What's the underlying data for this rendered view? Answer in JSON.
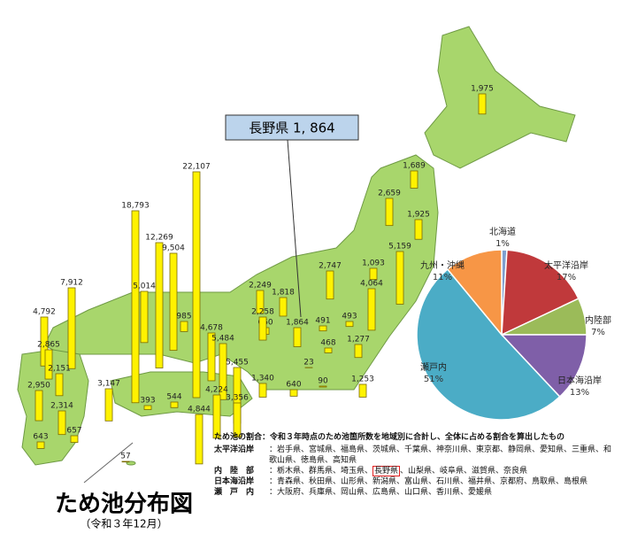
{
  "title": "ため池分布図",
  "subtitle": "（令和３年12月）",
  "callout": "長野県 1, 864",
  "bars": {
    "color": "#fff200",
    "values": [
      1975,
      1689,
      2659,
      1925,
      5159,
      1093,
      4064,
      2747,
      2249,
      1818,
      660,
      2258,
      1864,
      491,
      493,
      468,
      1277,
      23,
      1253,
      90,
      1340,
      640,
      22107,
      18793,
      12269,
      9504,
      5014,
      7912,
      985,
      4678,
      5484,
      5455,
      4792,
      2865,
      2151,
      2950,
      3147,
      393,
      544,
      4224,
      3356,
      4844,
      2314,
      643,
      657,
      57
    ],
    "value_labels": [
      "1,975",
      "1,689",
      "2,659",
      "1,925",
      "5,159",
      "1,093",
      "4,064",
      "2,747",
      "2,249",
      "1,818",
      "660",
      "2,258",
      "1,864",
      "491",
      "493",
      "468",
      "1,277",
      "23",
      "1,253",
      "90",
      "1,340",
      "640",
      "22,107",
      "18,793",
      "12,269",
      "9,504",
      "5,014",
      "7,912",
      "985",
      "4,678",
      "5,484",
      "5,455",
      "4,792",
      "2,865",
      "2,151",
      "2,950",
      "3,147",
      "393",
      "544",
      "4,224",
      "3,356",
      "4,844",
      "2,314",
      "643",
      "657",
      "57"
    ]
  },
  "pie": {
    "type": "pie",
    "categories": [
      "北海道",
      "太平洋沿岸",
      "内陸部",
      "日本海沿岸",
      "瀬戸内",
      "九州・沖縄"
    ],
    "values": [
      1,
      17,
      7,
      13,
      51,
      11
    ],
    "value_labels": [
      "1%",
      "17%",
      "7%",
      "13%",
      "51%",
      "11%"
    ],
    "colors": [
      "#7f9fcf",
      "#c0393b",
      "#9bbb59",
      "#7f5fa8",
      "#4bacc6",
      "#f79646"
    ]
  },
  "notes": {
    "intro": "ため池の割合：令和３年時点のため池箇所数を地域別に合計し、全体に占める割合を算出したもの",
    "rows": [
      {
        "label": "太平洋沿岸",
        "parts": [
          "：岩手県、宮城県、福島県、茨城県、千葉県、神奈川県、東京都、静岡県、愛知県、三重県、和歌山県、徳島県、高知県"
        ]
      },
      {
        "label": "内　陸　部",
        "parts": [
          "：栃木県、群馬県、埼玉県、",
          "長野県",
          "、山梨県、岐阜県、滋賀県、奈良県"
        ]
      },
      {
        "label": "日本海沿岸",
        "parts": [
          "：青森県、秋田県、山形県、新潟県、富山県、石川県、福井県、京都府、鳥取県、島根県"
        ]
      },
      {
        "label": "瀬　戸　内",
        "parts": [
          "：大阪府、兵庫県、岡山県、広島県、山口県、香川県、愛媛県"
        ]
      }
    ]
  }
}
